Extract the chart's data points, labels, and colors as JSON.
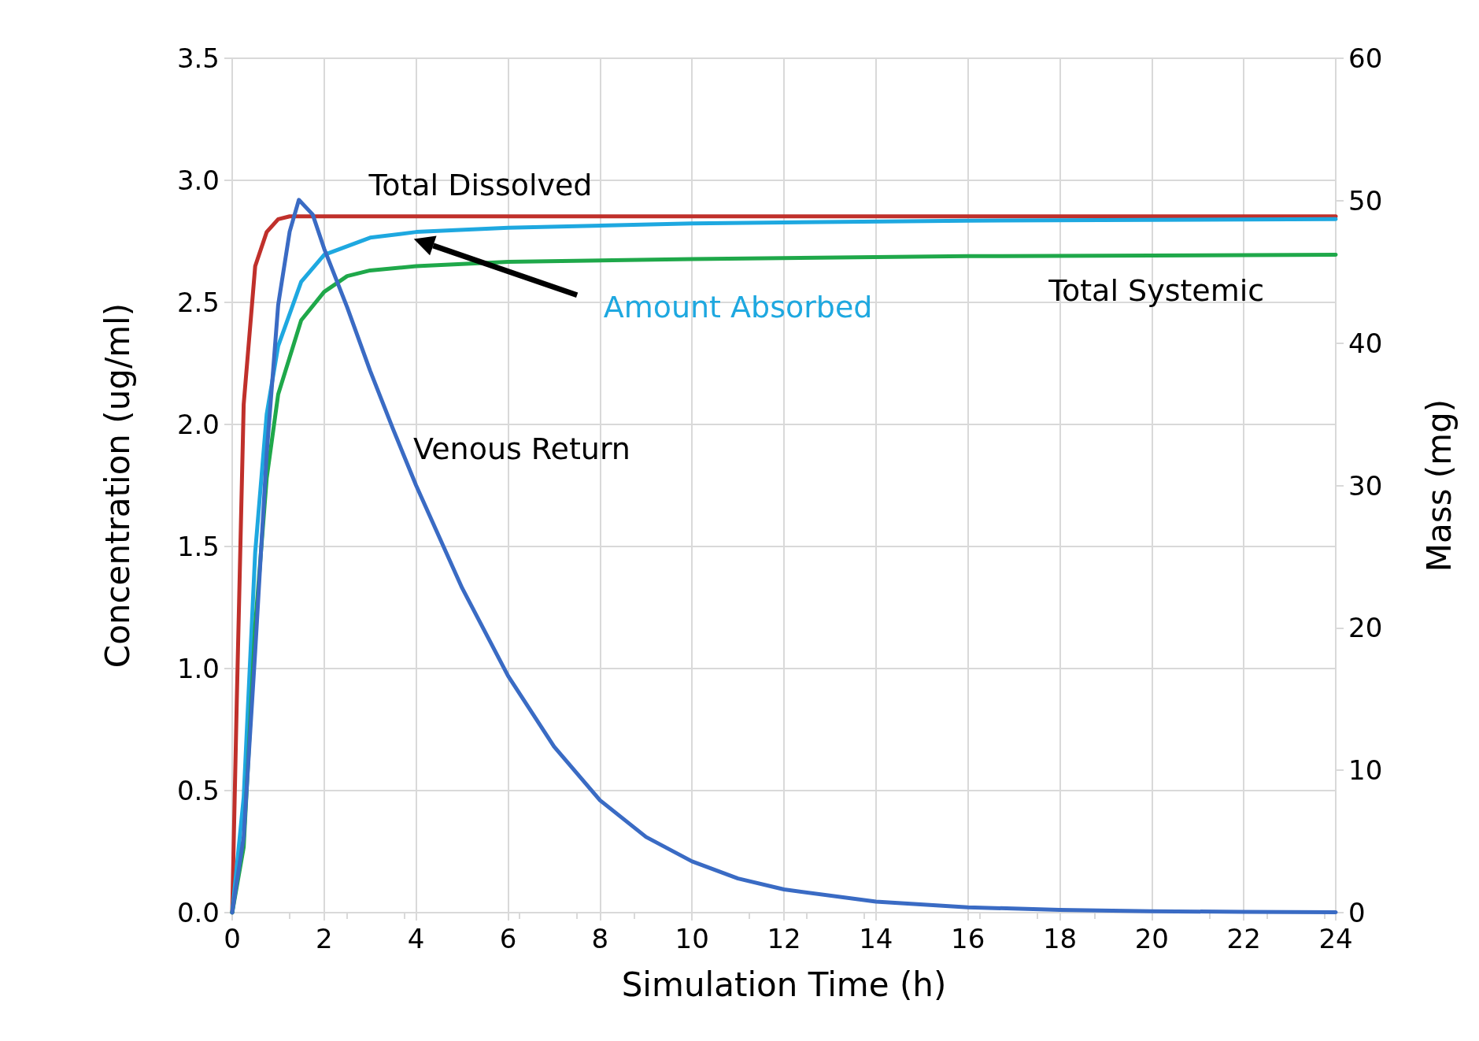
{
  "chart_data": {
    "type": "line",
    "xlabel": "Simulation Time (h)",
    "ylabel": "Concentration (ug/ml)",
    "y2label": "Mass (mg)",
    "xlim": [
      0,
      24
    ],
    "xticks": [
      0,
      2,
      4,
      6,
      8,
      10,
      12,
      14,
      16,
      18,
      20,
      22,
      24
    ],
    "ylim": [
      0,
      3.5
    ],
    "yticks": [
      {
        "value": 0,
        "label": "0.0"
      },
      {
        "value": 0.5,
        "label": "0.5"
      },
      {
        "value": 1,
        "label": "1.0"
      },
      {
        "value": 1.5,
        "label": "1.5"
      },
      {
        "value": 2,
        "label": "2.0"
      },
      {
        "value": 2.5,
        "label": "2.5"
      },
      {
        "value": 3,
        "label": "3.0"
      },
      {
        "value": 3.5,
        "label": "3.5"
      }
    ],
    "y2lim": [
      0,
      60
    ],
    "y2ticks": [
      0,
      10,
      20,
      30,
      40,
      50,
      60
    ],
    "grid": true,
    "legend": false,
    "marker": "none",
    "line_style": "solid",
    "series": [
      {
        "name": "Total Dissolved",
        "color": "#c0302b",
        "axis": "y2",
        "x": [
          0,
          0.1,
          0.25,
          0.5,
          0.75,
          1,
          1.25,
          2,
          4,
          8,
          12,
          16,
          20,
          24
        ],
        "values": [
          0,
          14.9,
          35.7,
          45.4,
          47.8,
          48.7,
          48.9,
          48.9,
          48.9,
          48.9,
          48.9,
          48.9,
          48.9,
          48.9
        ]
      },
      {
        "name": "Amount Absorbed",
        "color": "#1ea8e0",
        "axis": "y2",
        "x": [
          0,
          0.25,
          0.5,
          0.75,
          1,
          1.5,
          2,
          3,
          4,
          6,
          10,
          16,
          24
        ],
        "values": [
          0,
          8.1,
          25.3,
          35.0,
          39.8,
          44.3,
          46.2,
          47.4,
          47.8,
          48.1,
          48.4,
          48.6,
          48.7
        ]
      },
      {
        "name": "Total Systemic",
        "color": "#1fa84a",
        "axis": "y2",
        "x": [
          0,
          0.25,
          0.5,
          0.75,
          1,
          1.5,
          2,
          2.5,
          3,
          4,
          6,
          10,
          16,
          24
        ],
        "values": [
          0,
          4.6,
          20.1,
          30.5,
          36.4,
          41.6,
          43.6,
          44.7,
          45.1,
          45.4,
          45.7,
          45.9,
          46.1,
          46.2
        ]
      },
      {
        "name": "Venous Return",
        "color": "#3a6bc4",
        "axis": "y",
        "x": [
          0,
          0.25,
          0.5,
          0.75,
          1,
          1.25,
          1.45,
          1.75,
          2,
          2.5,
          3,
          3.5,
          4,
          5,
          6,
          7,
          8,
          9,
          10,
          11,
          12,
          14,
          16,
          18,
          20,
          22,
          24
        ],
        "values": [
          0,
          0.31,
          1.07,
          1.88,
          2.49,
          2.79,
          2.92,
          2.86,
          2.72,
          2.48,
          2.22,
          1.98,
          1.75,
          1.33,
          0.97,
          0.68,
          0.46,
          0.31,
          0.21,
          0.14,
          0.095,
          0.045,
          0.022,
          0.011,
          0.006,
          0.003,
          0.002
        ]
      }
    ]
  }
}
